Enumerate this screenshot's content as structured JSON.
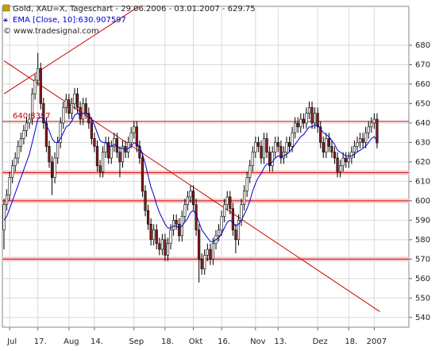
{
  "chart_data": {
    "type": "candlestick",
    "title": "Gold, XAU=X, Tageschart - 29.06.2006 - 03.01.2007 - 629.75",
    "source": "© www.tradesignal.com",
    "categories": [
      null,
      null,
      "Jul",
      null,
      null,
      null,
      null,
      null,
      null,
      null,
      null,
      null,
      "17.",
      null,
      null,
      null,
      null,
      null,
      null,
      null,
      null,
      null,
      null,
      "Aug",
      null,
      null,
      null,
      null,
      null,
      null,
      null,
      null,
      "14.",
      null,
      null,
      null,
      null,
      null,
      null,
      null,
      null,
      null,
      null,
      null,
      null,
      null,
      "Sep",
      null,
      null,
      null,
      null,
      null,
      null,
      null,
      null,
      null,
      null,
      "18.",
      null,
      null,
      null,
      null,
      null,
      null,
      null,
      null,
      null,
      "Okt",
      null,
      null,
      null,
      null,
      null,
      null,
      null,
      null,
      null,
      "16.",
      null,
      null,
      null,
      null,
      null,
      null,
      null,
      null,
      null,
      null,
      null,
      "Nov",
      null,
      null,
      null,
      null,
      null,
      null,
      null,
      "13.",
      null,
      null,
      null,
      null,
      null,
      null,
      null,
      null,
      null,
      null,
      null,
      null,
      null,
      "Dez",
      null,
      null,
      null,
      null,
      null,
      null,
      null,
      null,
      null,
      null,
      "18.",
      null,
      null,
      null,
      null,
      null,
      null,
      null,
      null,
      "2007",
      null
    ],
    "open": [
      585,
      598,
      603,
      612,
      618,
      622,
      628,
      632,
      636,
      640,
      642,
      655,
      662,
      668,
      650,
      640,
      628,
      620,
      612,
      622,
      630,
      640,
      648,
      652,
      645,
      650,
      655,
      648,
      642,
      650,
      645,
      640,
      632,
      628,
      618,
      615,
      625,
      630,
      622,
      628,
      632,
      625,
      620,
      628,
      625,
      630,
      635,
      638,
      628,
      622,
      605,
      595,
      588,
      580,
      585,
      578,
      575,
      580,
      572,
      578,
      585,
      590,
      588,
      582,
      592,
      598,
      602,
      605,
      598,
      585,
      570,
      565,
      572,
      575,
      570,
      578,
      582,
      585,
      592,
      598,
      602,
      596,
      585,
      580,
      590,
      598,
      605,
      612,
      618,
      625,
      630,
      628,
      622,
      632,
      625,
      618,
      625,
      630,
      628,
      622,
      625,
      630,
      628,
      635,
      640,
      638,
      642,
      640,
      645,
      648,
      640,
      645,
      638,
      630,
      625,
      632,
      628,
      625,
      622,
      615,
      618,
      622,
      620,
      622,
      625,
      628,
      630,
      632,
      630,
      635,
      638,
      640,
      642
    ],
    "high": [
      601,
      606,
      615,
      621,
      625,
      631,
      635,
      639,
      643,
      645,
      658,
      665,
      676,
      671,
      653,
      643,
      631,
      623,
      625,
      633,
      643,
      651,
      655,
      655,
      653,
      658,
      658,
      651,
      653,
      653,
      648,
      643,
      635,
      631,
      621,
      628,
      633,
      633,
      631,
      635,
      635,
      628,
      631,
      631,
      633,
      638,
      641,
      641,
      631,
      625,
      608,
      598,
      591,
      588,
      588,
      581,
      583,
      583,
      581,
      588,
      593,
      593,
      591,
      595,
      601,
      605,
      608,
      608,
      601,
      588,
      573,
      575,
      578,
      578,
      581,
      585,
      588,
      595,
      601,
      605,
      605,
      599,
      588,
      593,
      601,
      608,
      615,
      621,
      628,
      633,
      633,
      631,
      635,
      635,
      628,
      628,
      633,
      633,
      631,
      628,
      633,
      633,
      638,
      643,
      643,
      645,
      645,
      648,
      651,
      651,
      648,
      648,
      641,
      633,
      635,
      635,
      631,
      628,
      625,
      621,
      625,
      625,
      625,
      628,
      631,
      633,
      635,
      635,
      638,
      641,
      643,
      645,
      645
    ],
    "low": [
      575,
      595,
      600,
      609,
      615,
      619,
      625,
      629,
      633,
      637,
      639,
      652,
      659,
      647,
      637,
      625,
      617,
      603,
      609,
      619,
      627,
      637,
      645,
      642,
      642,
      647,
      645,
      639,
      639,
      642,
      637,
      629,
      625,
      615,
      612,
      612,
      622,
      619,
      619,
      625,
      622,
      612,
      617,
      622,
      622,
      627,
      632,
      625,
      619,
      602,
      592,
      585,
      577,
      577,
      575,
      572,
      572,
      569,
      569,
      575,
      582,
      585,
      579,
      579,
      589,
      595,
      599,
      595,
      582,
      558,
      562,
      562,
      569,
      567,
      567,
      575,
      579,
      582,
      589,
      595,
      593,
      582,
      573,
      577,
      587,
      595,
      602,
      609,
      615,
      622,
      625,
      619,
      619,
      622,
      615,
      615,
      622,
      625,
      619,
      619,
      622,
      625,
      625,
      632,
      635,
      635,
      637,
      637,
      642,
      637,
      637,
      635,
      627,
      622,
      622,
      625,
      622,
      619,
      612,
      612,
      615,
      617,
      617,
      619,
      622,
      625,
      627,
      627,
      627,
      632,
      635,
      637,
      627
    ],
    "close": [
      598,
      603,
      612,
      618,
      622,
      628,
      632,
      636,
      640,
      642,
      655,
      662,
      668,
      650,
      640,
      628,
      620,
      612,
      622,
      630,
      640,
      648,
      652,
      645,
      650,
      655,
      648,
      642,
      650,
      645,
      640,
      632,
      628,
      618,
      615,
      625,
      630,
      622,
      628,
      632,
      625,
      620,
      628,
      625,
      630,
      635,
      638,
      628,
      622,
      605,
      595,
      588,
      580,
      585,
      578,
      575,
      580,
      572,
      578,
      585,
      590,
      588,
      582,
      592,
      598,
      602,
      605,
      598,
      585,
      570,
      565,
      572,
      575,
      570,
      578,
      582,
      585,
      592,
      598,
      602,
      596,
      585,
      580,
      590,
      598,
      605,
      612,
      618,
      625,
      630,
      628,
      622,
      632,
      625,
      618,
      625,
      630,
      628,
      622,
      625,
      630,
      628,
      635,
      640,
      638,
      642,
      640,
      645,
      648,
      640,
      645,
      638,
      630,
      625,
      632,
      628,
      625,
      622,
      615,
      618,
      622,
      620,
      622,
      625,
      628,
      630,
      632,
      630,
      635,
      638,
      640,
      642,
      629.75
    ],
    "up_color": "#ffffff",
    "down_color": "#8b1a1a",
    "series": [
      {
        "name": "EMA [Close, 10]:630.907597",
        "color": "#0000cc",
        "values": [
          590,
          592,
          596,
          600,
          604,
          608,
          612,
          616,
          620,
          624,
          630,
          636,
          642,
          643,
          642,
          639,
          636,
          632,
          630,
          630,
          632,
          635,
          638,
          639,
          641,
          644,
          645,
          644,
          645,
          645,
          644,
          642,
          639,
          635,
          631,
          630,
          630,
          628,
          628,
          629,
          628,
          627,
          627,
          626,
          627,
          628,
          630,
          629,
          628,
          624,
          619,
          613,
          607,
          603,
          598,
          594,
          591,
          588,
          586,
          586,
          587,
          587,
          586,
          587,
          589,
          591,
          594,
          595,
          593,
          589,
          585,
          583,
          581,
          579,
          579,
          580,
          581,
          583,
          586,
          589,
          590,
          589,
          587,
          588,
          590,
          593,
          596,
          600,
          605,
          609,
          612,
          614,
          617,
          619,
          619,
          620,
          622,
          623,
          623,
          623,
          624,
          625,
          627,
          629,
          631,
          633,
          634,
          636,
          638,
          638,
          639,
          639,
          637,
          635,
          634,
          633,
          631,
          629,
          626,
          625,
          624,
          623,
          623,
          623,
          624,
          625,
          626,
          627,
          628,
          630,
          632,
          633,
          630.907597
        ]
      }
    ],
    "hlines": [
      {
        "value": 640.8397,
        "label": "640.8397"
      },
      {
        "value": 614.5
      },
      {
        "value": 600
      },
      {
        "value": 570
      }
    ],
    "hline_color": "#cc0000",
    "trendlines": [
      {
        "x": [
          0,
          133
        ],
        "y": [
          672,
          543
        ]
      },
      {
        "x": [
          0,
          52
        ],
        "y": [
          655,
          704
        ]
      }
    ],
    "ylim": [
      535,
      700
    ],
    "yticks": [
      540,
      550,
      560,
      570,
      580,
      590,
      600,
      610,
      620,
      630,
      640,
      650,
      660,
      670,
      680
    ],
    "grid": true
  }
}
